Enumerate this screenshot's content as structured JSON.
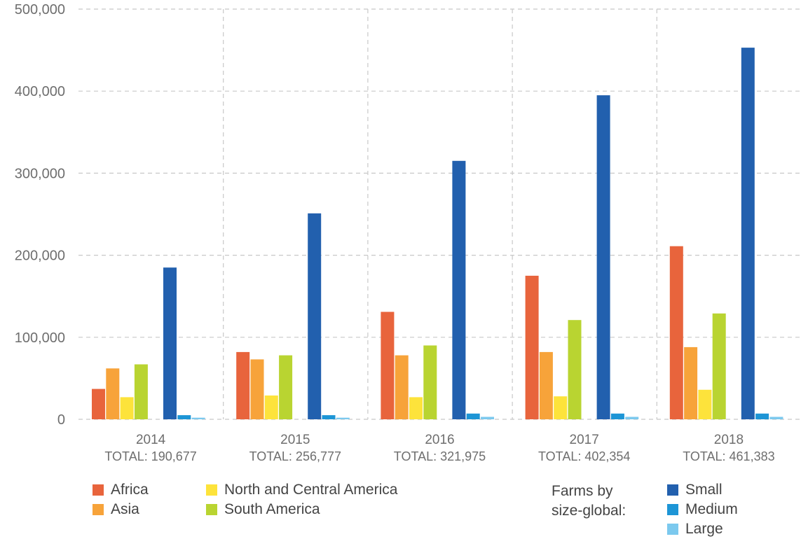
{
  "chart_data": {
    "type": "bar",
    "categories": [
      "2014",
      "2015",
      "2016",
      "2017",
      "2018"
    ],
    "category_totals": [
      "TOTAL: 190,677",
      "TOTAL: 256,777",
      "TOTAL: 321,975",
      "TOTAL: 402,354",
      "TOTAL: 461,383"
    ],
    "ylim": [
      0,
      500000
    ],
    "yticks": [
      0,
      100000,
      200000,
      300000,
      400000,
      500000
    ],
    "ytick_labels": [
      "0",
      "100,000",
      "200,000",
      "300,000",
      "400,000",
      "500,000"
    ],
    "grid": true,
    "series_groups": [
      {
        "title": "",
        "series": [
          {
            "name": "Africa",
            "color": "#e8643c",
            "values": [
              37000,
              82000,
              131000,
              175000,
              211000
            ]
          },
          {
            "name": "Asia",
            "color": "#f7a33a",
            "values": [
              62000,
              73000,
              78000,
              82000,
              88000
            ]
          },
          {
            "name": "North and Central America",
            "color": "#fde33b",
            "values": [
              27000,
              29000,
              27000,
              28000,
              36000
            ]
          },
          {
            "name": "South America",
            "color": "#b9d431",
            "values": [
              67000,
              78000,
              90000,
              121000,
              129000
            ]
          }
        ]
      },
      {
        "title": "Farms by size-global:",
        "series": [
          {
            "name": "Small",
            "color": "#2260ae",
            "values": [
              185000,
              251000,
              315000,
              395000,
              453000
            ]
          },
          {
            "name": "Medium",
            "color": "#1d95d6",
            "values": [
              5000,
              5000,
              7000,
              7000,
              7000
            ]
          },
          {
            "name": "Large",
            "color": "#7cc9ee",
            "values": [
              2000,
              2000,
              3000,
              3000,
              3000
            ]
          }
        ]
      }
    ],
    "legend_position": "bottom"
  },
  "legend": {
    "africa": "Africa",
    "asia": "Asia",
    "ncamerica": "North and Central America",
    "samerica": "South America",
    "size_title_line1": "Farms by",
    "size_title_line2": "size-global:",
    "small": "Small",
    "medium": "Medium",
    "large": "Large"
  },
  "colors": {
    "africa": "#e8643c",
    "asia": "#f7a33a",
    "ncamerica": "#fde33b",
    "samerica": "#b9d431",
    "small": "#2260ae",
    "medium": "#1d95d6",
    "large": "#7cc9ee",
    "grid": "#c8c8c8"
  }
}
